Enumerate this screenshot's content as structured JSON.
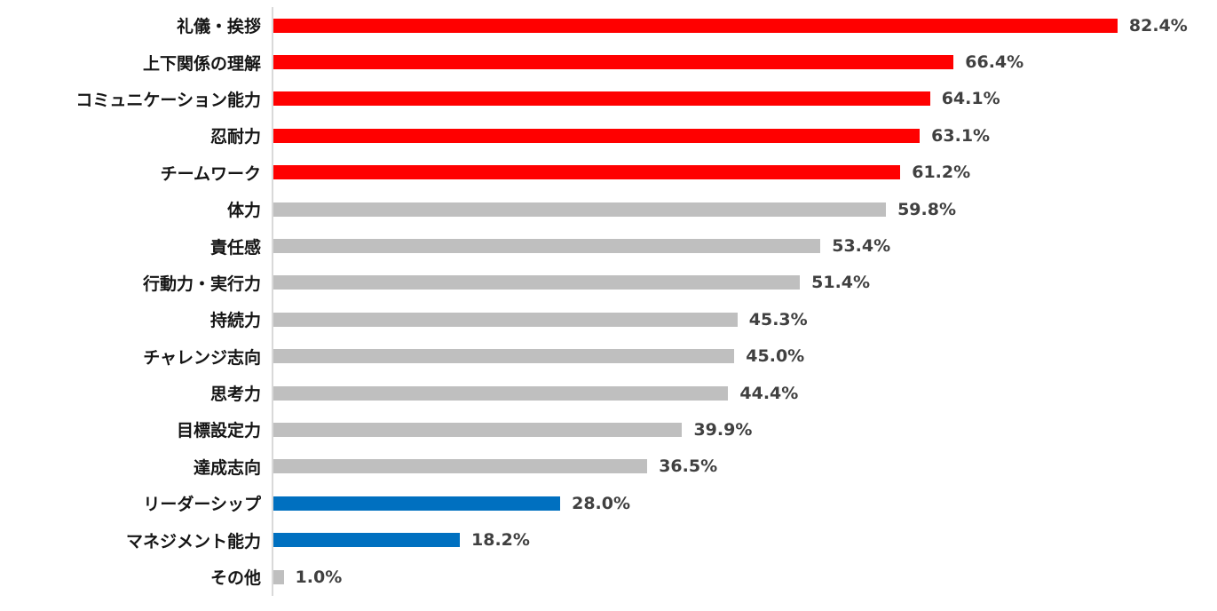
{
  "chart_data": {
    "type": "bar",
    "orientation": "horizontal",
    "title": "",
    "xlabel": "",
    "ylabel": "",
    "value_suffix": "%",
    "xlim": [
      0,
      92
    ],
    "grid": false,
    "legend_position": "none",
    "axis_line_color": "#D9D9D9",
    "colors": {
      "red": "#FF0000",
      "gray": "#BFBFBF",
      "blue": "#0070C0"
    },
    "categories": [
      "礼儀・挨拶",
      "上下関係の理解",
      "コミュニケーション能力",
      "忍耐力",
      "チームワーク",
      "体力",
      "責任感",
      "行動力・実行力",
      "持続力",
      "チャレンジ志向",
      "思考力",
      "目標設定力",
      "達成志向",
      "リーダーシップ",
      "マネジメント能力",
      "その他"
    ],
    "values": [
      82.4,
      66.4,
      64.1,
      63.1,
      61.2,
      59.8,
      53.4,
      51.4,
      45.3,
      45.0,
      44.4,
      39.9,
      36.5,
      28.0,
      18.2,
      1.0
    ],
    "bars": [
      {
        "label": "礼儀・挨拶",
        "value": 82.4,
        "value_label": "82.4%",
        "color": "red"
      },
      {
        "label": "上下関係の理解",
        "value": 66.4,
        "value_label": "66.4%",
        "color": "red"
      },
      {
        "label": "コミュニケーション能力",
        "value": 64.1,
        "value_label": "64.1%",
        "color": "red"
      },
      {
        "label": "忍耐力",
        "value": 63.1,
        "value_label": "63.1%",
        "color": "red"
      },
      {
        "label": "チームワーク",
        "value": 61.2,
        "value_label": "61.2%",
        "color": "red"
      },
      {
        "label": "体力",
        "value": 59.8,
        "value_label": "59.8%",
        "color": "gray"
      },
      {
        "label": "責任感",
        "value": 53.4,
        "value_label": "53.4%",
        "color": "gray"
      },
      {
        "label": "行動力・実行力",
        "value": 51.4,
        "value_label": "51.4%",
        "color": "gray"
      },
      {
        "label": "持続力",
        "value": 45.3,
        "value_label": "45.3%",
        "color": "gray"
      },
      {
        "label": "チャレンジ志向",
        "value": 45.0,
        "value_label": "45.0%",
        "color": "gray"
      },
      {
        "label": "思考力",
        "value": 44.4,
        "value_label": "44.4%",
        "color": "gray"
      },
      {
        "label": "目標設定力",
        "value": 39.9,
        "value_label": "39.9%",
        "color": "gray"
      },
      {
        "label": "達成志向",
        "value": 36.5,
        "value_label": "36.5%",
        "color": "gray"
      },
      {
        "label": "リーダーシップ",
        "value": 28.0,
        "value_label": "28.0%",
        "color": "blue"
      },
      {
        "label": "マネジメント能力",
        "value": 18.2,
        "value_label": "18.2%",
        "color": "blue"
      },
      {
        "label": "その他",
        "value": 1.0,
        "value_label": "1.0%",
        "color": "gray"
      }
    ]
  }
}
